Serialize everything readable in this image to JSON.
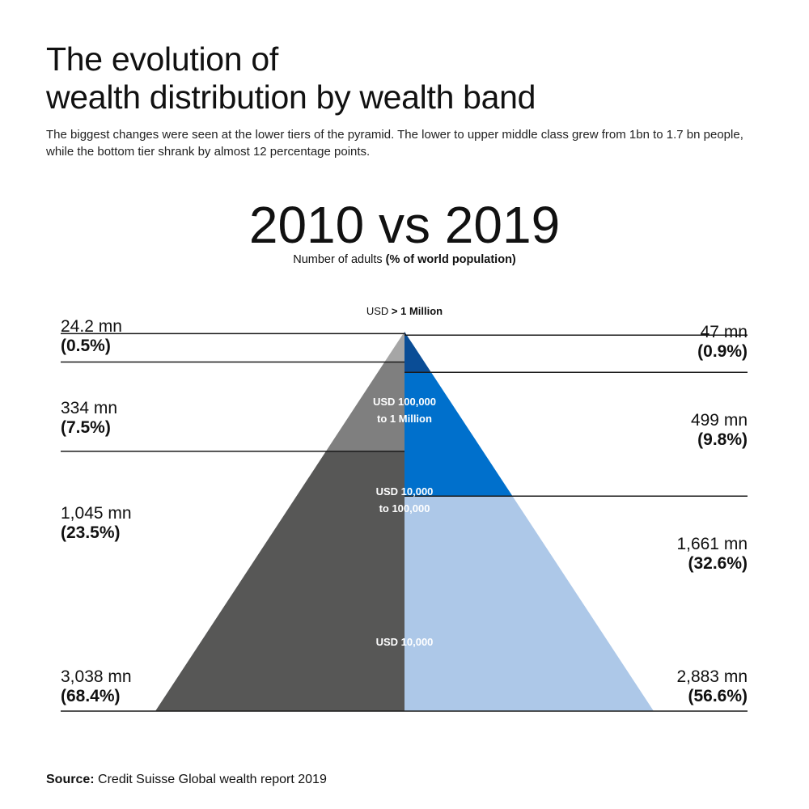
{
  "title": {
    "line1": "The evolution of",
    "line2": "wealth distribution by wealth band"
  },
  "subtitle": "The biggest changes were seen at the lower tiers of the pyramid. The lower to upper middle class grew from 1bn to 1.7 bn people, while the bottom tier shrank by almost 12 percentage points.",
  "heading": "2010 vs 2019",
  "measure": {
    "prefix": "Number of adults",
    "emphasis": "(% of world population)"
  },
  "source": {
    "label": "Source:",
    "text": "Credit Suisse Global wealth report 2019"
  },
  "chart_data": {
    "type": "bar",
    "series": [
      {
        "side": "left",
        "colors": [
          "#c3c3c3",
          "#a6a6a6",
          "#7f7f7f",
          "#575756"
        ],
        "values_mn": [
          24.2,
          334,
          1045,
          3038
        ],
        "shares_pct": [
          0.5,
          7.5,
          23.5,
          68.4
        ],
        "count_labels": [
          "24.2 mn",
          "334 mn",
          "1,045 mn",
          "3,038 mn"
        ],
        "share_labels": [
          "(0.5%)",
          "(7.5%)",
          "(23.5%)",
          "(68.4%)"
        ]
      },
      {
        "side": "right",
        "colors": [
          "#0b2d59",
          "#0a4d96",
          "#0070cc",
          "#adc8e8"
        ],
        "values_mn": [
          47,
          499,
          1661,
          2883
        ],
        "shares_pct": [
          0.9,
          9.8,
          32.6,
          56.6
        ],
        "count_labels": [
          "47 mn",
          "499 mn",
          "1,661 mn",
          "2,883 mn"
        ],
        "share_labels": [
          "(0.9%)",
          "(9.8%)",
          "(32.6%)",
          "(56.6%)"
        ]
      }
    ],
    "bands": {
      "top": {
        "prefix": "USD",
        "emphasis": "> 1 Million"
      },
      "band2": {
        "line1": "USD 100,000",
        "line2": "to 1 Million"
      },
      "band3": {
        "line1": "USD 10,000",
        "line2": "to 100,000"
      },
      "band4": "USD 10,000"
    },
    "line_color": "#1a1a1a"
  }
}
